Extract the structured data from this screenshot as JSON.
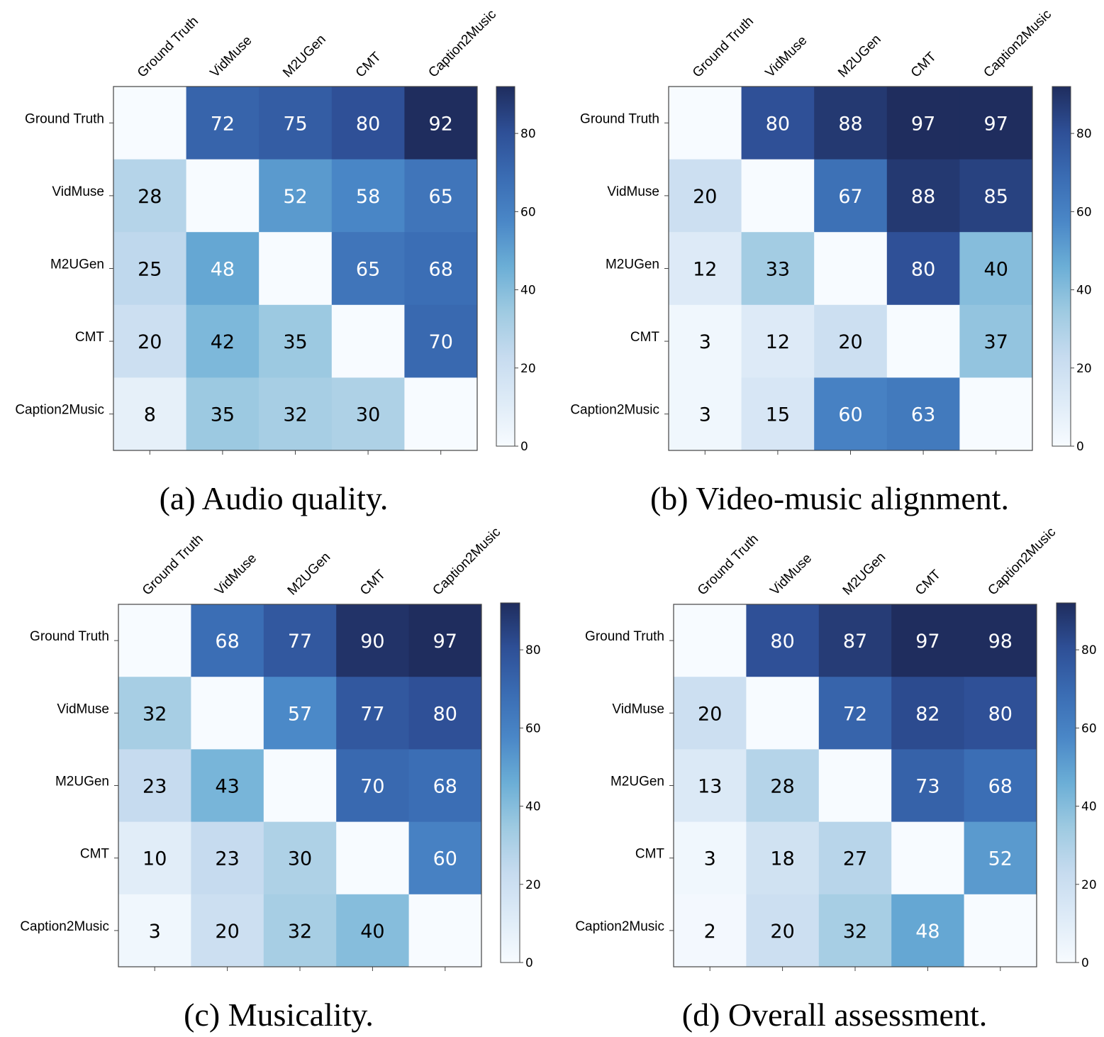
{
  "colors": {
    "cmap": [
      "#f7fbff",
      "#deebf7",
      "#c6dbef",
      "#9ecae1",
      "#6baed6",
      "#4a87c7",
      "#3a6cb3",
      "#2e4f96",
      "#1f2d5e"
    ],
    "text_dark": "#000000",
    "text_light": "#ffffff",
    "frame": "#444444"
  },
  "chart_data": [
    {
      "type": "heatmap",
      "caption": "(a) Audio quality.",
      "rows": [
        "Ground Truth",
        "VidMuse",
        "M2UGen",
        "CMT",
        "Caption2Music"
      ],
      "cols": [
        "Ground Truth",
        "VidMuse",
        "M2UGen",
        "CMT",
        "Caption2Music"
      ],
      "values": [
        [
          null,
          72,
          75,
          80,
          92
        ],
        [
          28,
          null,
          52,
          58,
          65
        ],
        [
          25,
          48,
          null,
          65,
          68
        ],
        [
          20,
          42,
          35,
          null,
          70
        ],
        [
          8,
          35,
          32,
          30,
          null
        ]
      ],
      "colorbar": {
        "vmin": 0,
        "vmax": 92,
        "ticks": [
          0,
          20,
          40,
          60,
          80
        ]
      }
    },
    {
      "type": "heatmap",
      "caption": "(b) Video-music alignment.",
      "rows": [
        "Ground Truth",
        "VidMuse",
        "M2UGen",
        "CMT",
        "Caption2Music"
      ],
      "cols": [
        "Ground Truth",
        "VidMuse",
        "M2UGen",
        "CMT",
        "Caption2Music"
      ],
      "values": [
        [
          null,
          80,
          88,
          97,
          97
        ],
        [
          20,
          null,
          67,
          88,
          85
        ],
        [
          12,
          33,
          null,
          80,
          40
        ],
        [
          3,
          12,
          20,
          null,
          37
        ],
        [
          3,
          15,
          60,
          63,
          null
        ]
      ],
      "colorbar": {
        "vmin": 0,
        "vmax": 92,
        "ticks": [
          0,
          20,
          40,
          60,
          80
        ]
      }
    },
    {
      "type": "heatmap",
      "caption": "(c) Musicality.",
      "rows": [
        "Ground Truth",
        "VidMuse",
        "M2UGen",
        "CMT",
        "Caption2Music"
      ],
      "cols": [
        "Ground Truth",
        "VidMuse",
        "M2UGen",
        "CMT",
        "Caption2Music"
      ],
      "values": [
        [
          null,
          68,
          77,
          90,
          97
        ],
        [
          32,
          null,
          57,
          77,
          80
        ],
        [
          23,
          43,
          null,
          70,
          68
        ],
        [
          10,
          23,
          30,
          null,
          60
        ],
        [
          3,
          20,
          32,
          40,
          null
        ]
      ],
      "colorbar": {
        "vmin": 0,
        "vmax": 92,
        "ticks": [
          0,
          20,
          40,
          60,
          80
        ]
      }
    },
    {
      "type": "heatmap",
      "caption": "(d) Overall assessment.",
      "rows": [
        "Ground Truth",
        "VidMuse",
        "M2UGen",
        "CMT",
        "Caption2Music"
      ],
      "cols": [
        "Ground Truth",
        "VidMuse",
        "M2UGen",
        "CMT",
        "Caption2Music"
      ],
      "values": [
        [
          null,
          80,
          87,
          97,
          98
        ],
        [
          20,
          null,
          72,
          82,
          80
        ],
        [
          13,
          28,
          null,
          73,
          68
        ],
        [
          3,
          18,
          27,
          null,
          52
        ],
        [
          2,
          20,
          32,
          48,
          null
        ]
      ],
      "colorbar": {
        "vmin": 0,
        "vmax": 92,
        "ticks": [
          0,
          20,
          40,
          60,
          80
        ]
      }
    }
  ]
}
